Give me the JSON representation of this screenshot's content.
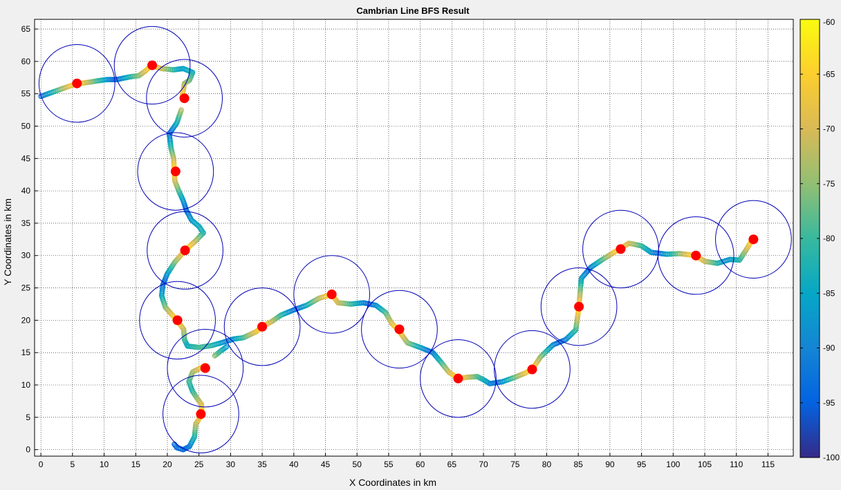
{
  "chart_data": {
    "type": "scatter",
    "title": "Cambrian Line BFS Result",
    "xlabel": "X Coordinates in km",
    "ylabel": "Y Coordinates in km",
    "xlim": [
      -1,
      119
    ],
    "ylim": [
      -1,
      66.5
    ],
    "xticks": [
      0,
      5,
      10,
      15,
      20,
      25,
      30,
      35,
      40,
      45,
      50,
      55,
      60,
      65,
      70,
      75,
      80,
      85,
      90,
      95,
      100,
      105,
      110,
      115
    ],
    "yticks": [
      0,
      5,
      10,
      15,
      20,
      25,
      30,
      35,
      40,
      45,
      50,
      55,
      60,
      65
    ],
    "grid": true,
    "colorbar": {
      "range": [
        -100,
        -60
      ],
      "ticks": [
        -60,
        -65,
        -70,
        -75,
        -80,
        -85,
        -90,
        -95,
        -100
      ],
      "colormap": "parula"
    },
    "route_path": [
      [
        0,
        54.6
      ],
      [
        2,
        55.3
      ],
      [
        4,
        56
      ],
      [
        5.5,
        56.5
      ],
      [
        7,
        56.7
      ],
      [
        9,
        57
      ],
      [
        10.5,
        57.2
      ],
      [
        12,
        57.2
      ],
      [
        14,
        57.6
      ],
      [
        15.5,
        57.8
      ],
      [
        16.5,
        58.5
      ],
      [
        17.5,
        59.4
      ],
      [
        19,
        58.9
      ],
      [
        21,
        58.7
      ],
      [
        22.5,
        58.9
      ],
      [
        24,
        58.3
      ],
      [
        23.5,
        57.1
      ],
      [
        22.7,
        56.6
      ],
      [
        22.3,
        54.2
      ]
    ],
    "route_path_2": [
      [
        22.2,
        52.5
      ],
      [
        21.5,
        50.5
      ],
      [
        20.3,
        48.8
      ],
      [
        20.6,
        46.5
      ],
      [
        21,
        45
      ],
      [
        21.1,
        43
      ],
      [
        21.2,
        41.5
      ],
      [
        21.8,
        40
      ],
      [
        22.5,
        38.5
      ],
      [
        23,
        37
      ],
      [
        23.8,
        35.5
      ],
      [
        25,
        34.5
      ],
      [
        25.7,
        33.5
      ],
      [
        24.5,
        32.3
      ],
      [
        22.8,
        30.8
      ],
      [
        21.2,
        29
      ],
      [
        20,
        27.2
      ],
      [
        19.3,
        25.5
      ],
      [
        19.1,
        23.8
      ],
      [
        19.7,
        22
      ],
      [
        21.5,
        20
      ],
      [
        22.6,
        18.6
      ],
      [
        22.7,
        17
      ],
      [
        23.2,
        16
      ],
      [
        25,
        15.8
      ],
      [
        27,
        16.1
      ],
      [
        28.5,
        16.5
      ],
      [
        30.5,
        17.1
      ],
      [
        32,
        17.3
      ],
      [
        34,
        18.2
      ],
      [
        35,
        19
      ],
      [
        36.5,
        19.8
      ],
      [
        38,
        20.8
      ],
      [
        40,
        21.6
      ],
      [
        42,
        22.3
      ],
      [
        44,
        23.4
      ],
      [
        46,
        24
      ],
      [
        47,
        22.7
      ],
      [
        49,
        22.5
      ],
      [
        51,
        22.7
      ],
      [
        53,
        22.3
      ],
      [
        54.5,
        21.2
      ],
      [
        55.5,
        19.5
      ],
      [
        56.5,
        18.5
      ],
      [
        58,
        16.5
      ],
      [
        60,
        15.8
      ],
      [
        62,
        15
      ],
      [
        63.3,
        13.5
      ],
      [
        64.5,
        12
      ],
      [
        66,
        11
      ],
      [
        67.5,
        11.2
      ],
      [
        69,
        11.3
      ],
      [
        70,
        10.8
      ],
      [
        71,
        10.2
      ],
      [
        73,
        10.5
      ],
      [
        75,
        11.2
      ],
      [
        76.5,
        11.8
      ],
      [
        77.7,
        12.4
      ],
      [
        79,
        14.3
      ],
      [
        81,
        16.2
      ],
      [
        83,
        17
      ],
      [
        84.6,
        18.5
      ],
      [
        85.1,
        22.1
      ],
      [
        85.3,
        24.5
      ],
      [
        85.5,
        26.5
      ],
      [
        87,
        28.2
      ],
      [
        89,
        29.5
      ],
      [
        91.5,
        31
      ],
      [
        93,
        31.9
      ],
      [
        95,
        31.5
      ],
      [
        96.5,
        30.5
      ],
      [
        99,
        30.2
      ],
      [
        101,
        30.3
      ],
      [
        103.5,
        30
      ],
      [
        105,
        29.1
      ],
      [
        107,
        28.8
      ],
      [
        109,
        29.4
      ],
      [
        110.5,
        29.3
      ],
      [
        111.5,
        30.8
      ],
      [
        112.5,
        32.4
      ]
    ],
    "route_path_3": [
      [
        26,
        13
      ],
      [
        25.2,
        12.6
      ],
      [
        24,
        12
      ],
      [
        23.4,
        10.5
      ],
      [
        24,
        9
      ],
      [
        24.8,
        7.8
      ],
      [
        25.4,
        7
      ],
      [
        25.5,
        5.4
      ],
      [
        24.5,
        4
      ],
      [
        24.3,
        2
      ],
      [
        23.5,
        0.5
      ],
      [
        22.5,
        0
      ],
      [
        21.5,
        0.3
      ],
      [
        21,
        1
      ]
    ],
    "route_stub": [
      [
        27.5,
        14.5
      ],
      [
        28.5,
        15.3
      ],
      [
        29.5,
        16
      ]
    ],
    "base_stations": [
      [
        5.7,
        56.6
      ],
      [
        17.6,
        59.4
      ],
      [
        22.7,
        54.3
      ],
      [
        21.3,
        43
      ],
      [
        22.8,
        30.8
      ],
      [
        21.6,
        20
      ],
      [
        26,
        12.6
      ],
      [
        25.3,
        5.5
      ],
      [
        35,
        19
      ],
      [
        46,
        24
      ],
      [
        56.7,
        18.6
      ],
      [
        66,
        11
      ],
      [
        77.7,
        12.4
      ],
      [
        85.1,
        22.1
      ],
      [
        91.7,
        31
      ],
      [
        103.6,
        30
      ],
      [
        112.7,
        32.5
      ]
    ],
    "coverage_radius_km": 6,
    "bs_color": "#ff0000",
    "circle_color": "#0000b4"
  }
}
